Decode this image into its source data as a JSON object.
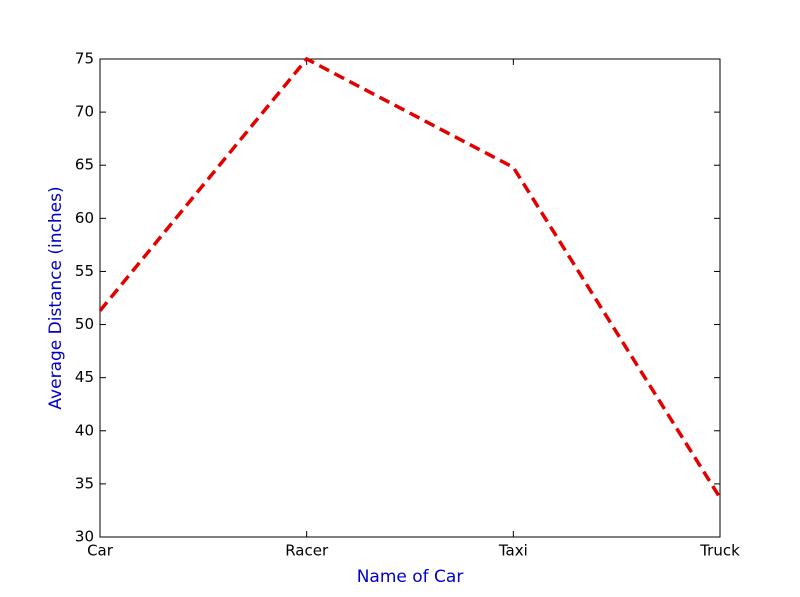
{
  "chart_data": {
    "type": "line",
    "xlabel": "Name of Car",
    "ylabel": "Average Distance (inches)",
    "categories": [
      "Car",
      "Racer",
      "Taxi",
      "Truck"
    ],
    "series": [
      {
        "color": "#e50000",
        "values": [
          51.3,
          75,
          64.8,
          33.7
        ]
      }
    ],
    "ylim": [
      30,
      75
    ],
    "yticks": [
      30,
      35,
      40,
      45,
      50,
      55,
      60,
      65,
      70,
      75
    ],
    "label_color": "#0000cc",
    "line_style": "dashed",
    "grid": false
  }
}
